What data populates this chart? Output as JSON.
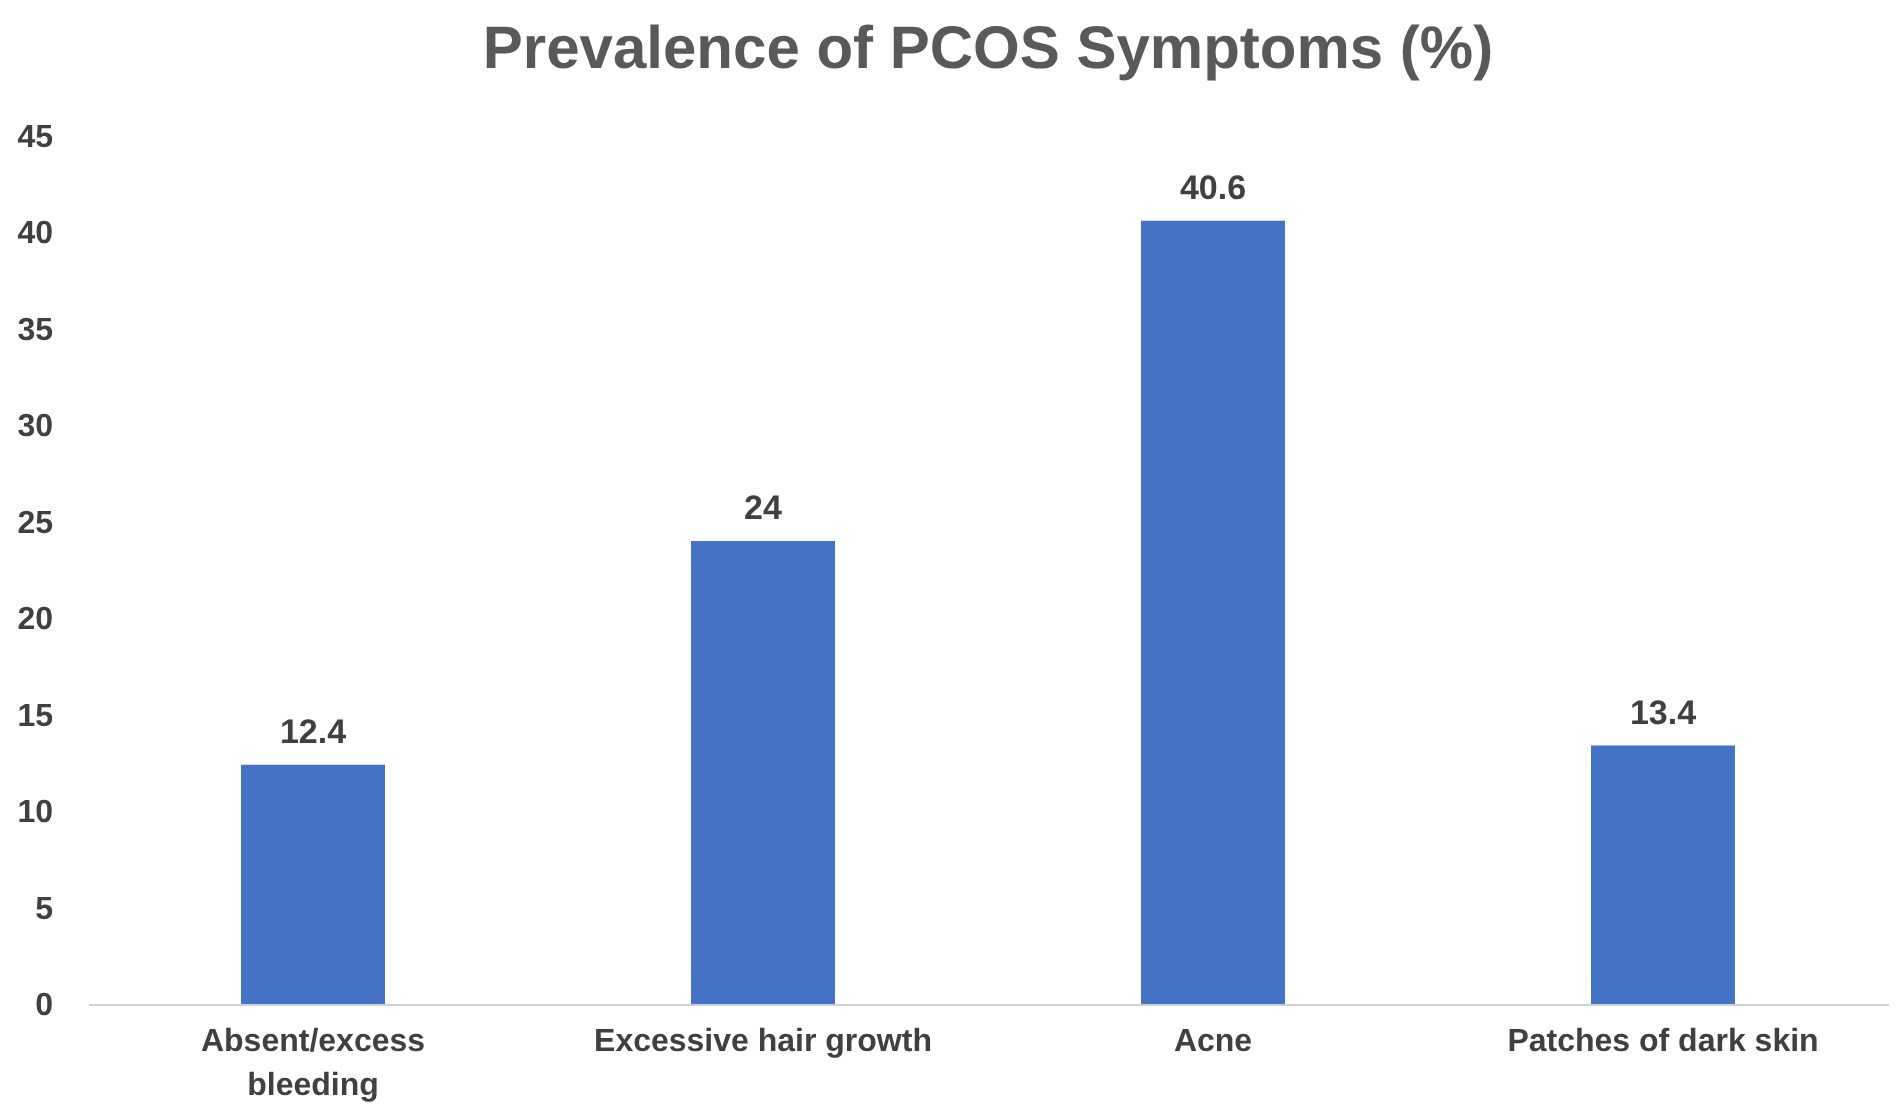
{
  "chart_data": {
    "type": "bar",
    "title": "Prevalence of PCOS Symptoms (%)",
    "categories": [
      "Absent/excess bleeding",
      "Excessive hair growth",
      "Acne",
      "Patches of dark skin"
    ],
    "values": [
      12.4,
      24,
      40.6,
      13.4
    ],
    "color": "#4472c4",
    "ylim": [
      0,
      45
    ],
    "yticks": [
      0,
      5,
      10,
      15,
      20,
      25,
      30,
      35,
      40,
      45
    ],
    "grid": false,
    "data_labels": true
  }
}
